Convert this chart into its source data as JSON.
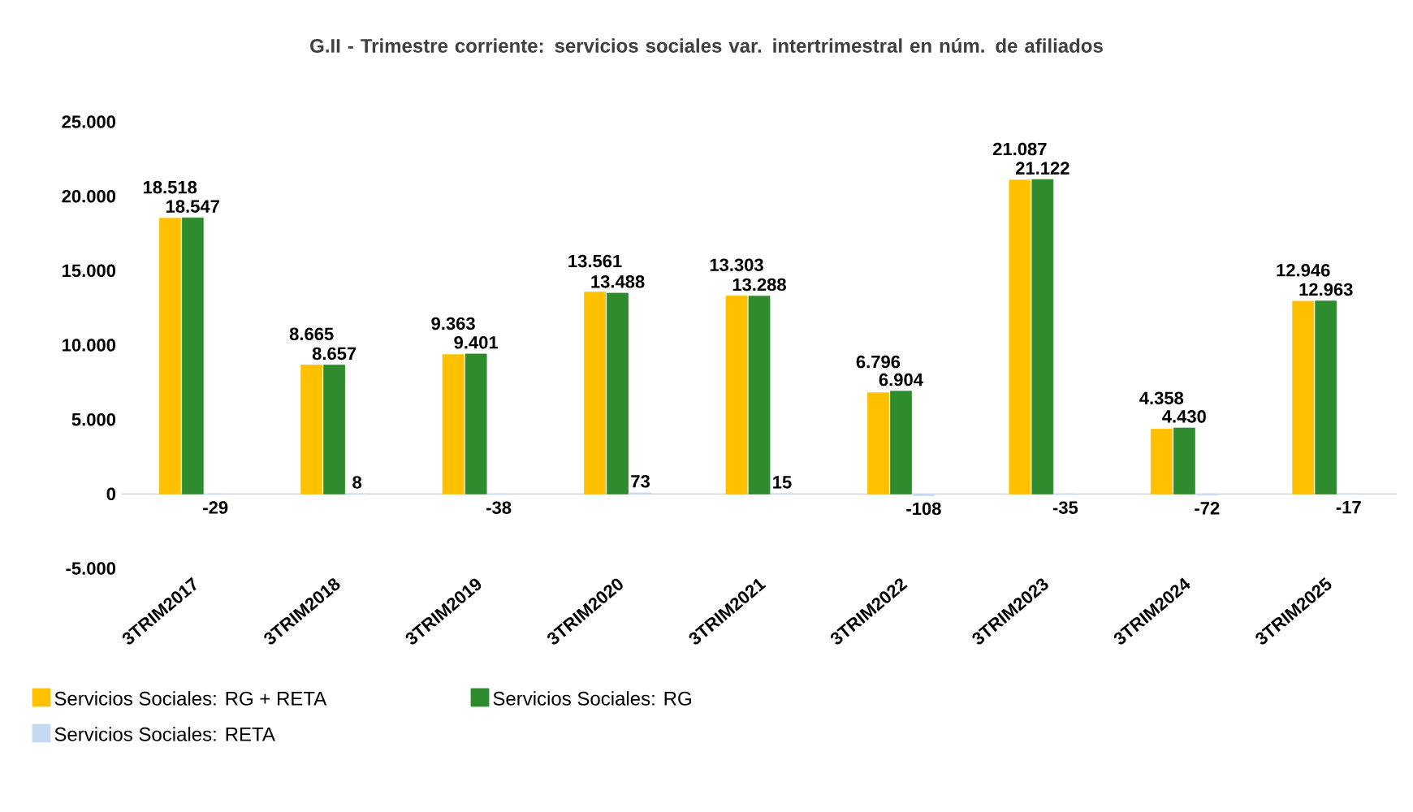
{
  "chart_data": {
    "type": "bar",
    "title": "G.II - Trimestre corriente: servicios sociales var. intertrimestral en núm. de afiliados",
    "categories": [
      "3TRIM2017",
      "3TRIM2018",
      "3TRIM2019",
      "3TRIM2020",
      "3TRIM2021",
      "3TRIM2022",
      "3TRIM2023",
      "3TRIM2024",
      "3TRIM2025"
    ],
    "series": [
      {
        "name": "Servicios Sociales: RG + RETA",
        "color": "#ffc000",
        "values": [
          18518,
          8665,
          9363,
          13561,
          13303,
          6796,
          21087,
          4358,
          12946
        ],
        "value_labels": [
          "18.518",
          "8.665",
          "9.363",
          "13.561",
          "13.303",
          "6.796",
          "21.087",
          "4.358",
          "12.946"
        ]
      },
      {
        "name": "Servicios Sociales: RG",
        "color": "#2e8b2e",
        "values": [
          18547,
          8657,
          9401,
          13488,
          13288,
          6904,
          21122,
          4430,
          12963
        ],
        "value_labels": [
          "18.547",
          "8.657",
          "9.401",
          "13.488",
          "13.288",
          "6.904",
          "21.122",
          "4.430",
          "12.963"
        ]
      },
      {
        "name": "Servicios Sociales: RETA",
        "color": "#c5d9f1",
        "values": [
          -29,
          8,
          -38,
          73,
          15,
          -108,
          -35,
          -72,
          -17
        ],
        "value_labels": [
          "-29",
          "8",
          "-38",
          "73",
          "15",
          "-108",
          "-35",
          "-72",
          "-17"
        ]
      }
    ],
    "ylim": [
      -5000,
      25000
    ],
    "yticks": [
      {
        "value": -5000,
        "label": "-5.000"
      },
      {
        "value": 0,
        "label": "0"
      },
      {
        "value": 5000,
        "label": "5.000"
      },
      {
        "value": 10000,
        "label": "10.000"
      },
      {
        "value": 15000,
        "label": "15.000"
      },
      {
        "value": 20000,
        "label": "20.000"
      },
      {
        "value": 25000,
        "label": "25.000"
      }
    ],
    "legend": "bottom"
  }
}
